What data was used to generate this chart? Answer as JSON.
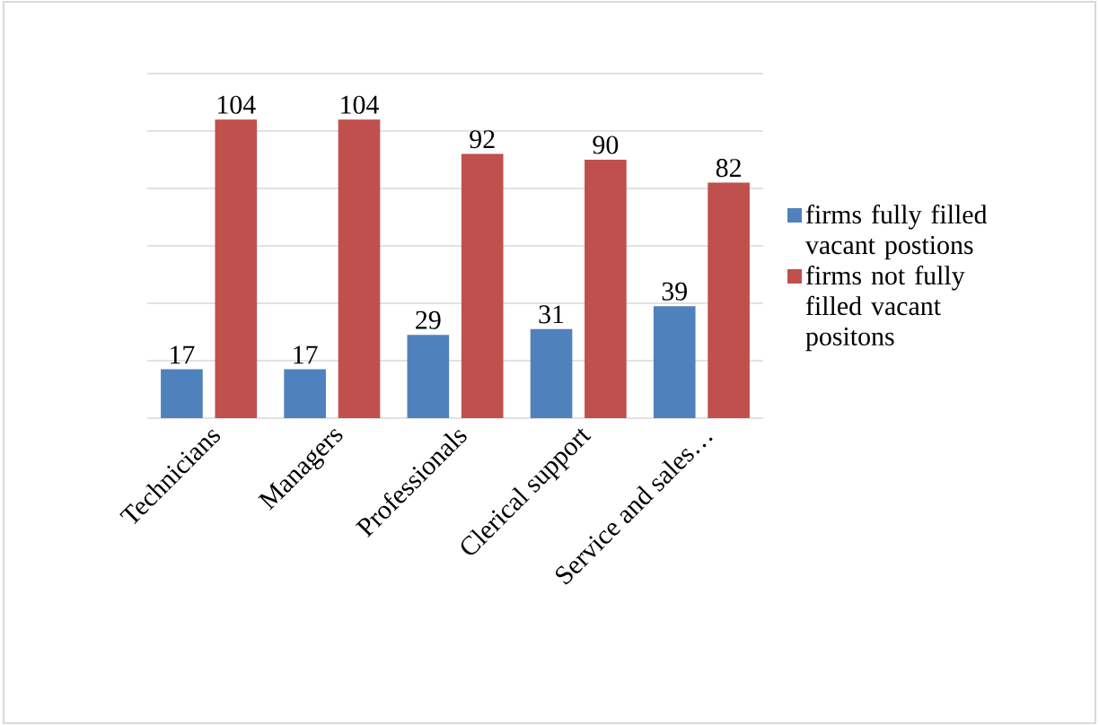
{
  "chart_data": {
    "type": "bar",
    "categories": [
      "Technicians",
      "Managers",
      "Professionals",
      "Clerical support",
      "Service and sales…"
    ],
    "series": [
      {
        "name": "firms fully filled vacant postions",
        "color": "#4f81bd",
        "values": [
          17,
          17,
          29,
          31,
          39
        ]
      },
      {
        "name": "firms not fully filled vacant positons",
        "color": "#c0504d",
        "values": [
          104,
          104,
          92,
          90,
          82
        ]
      }
    ],
    "data_labels": true,
    "ylim": [
      0,
      120
    ],
    "yticks": [
      {
        "value": 0,
        "label": null
      },
      {
        "value": 20,
        "label": null
      },
      {
        "value": 40,
        "label": null
      },
      {
        "value": 60,
        "label": null
      },
      {
        "value": 80,
        "label": null
      },
      {
        "value": 100,
        "label": null
      },
      {
        "value": 120,
        "label": null
      }
    ],
    "tick_labels": "x",
    "grid": "y",
    "legend": "right"
  }
}
